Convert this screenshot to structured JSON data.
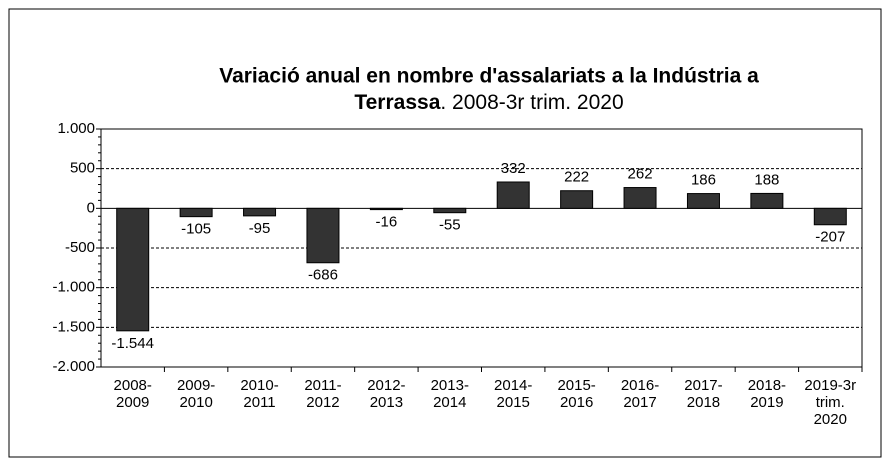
{
  "chart_data": {
    "type": "bar",
    "title": [
      "Variació anual en nombre d'assalariats a la Indústria a",
      "Terrassa"
    ],
    "subtitle": ". 2008-3r trim. 2020",
    "categories": [
      "2008-2009",
      "2009-2010",
      "2010-2011",
      "2011-2012",
      "2012-2013",
      "2013-2014",
      "2014-2015",
      "2015-2016",
      "2016-2017",
      "2017-2018",
      "2018-2019",
      "2019-3r trim. 2020"
    ],
    "values": [
      -1544,
      -105,
      -95,
      -686,
      -16,
      -55,
      332,
      222,
      262,
      186,
      188,
      -207
    ],
    "value_labels": [
      "-1.544",
      "-105",
      "-95",
      "-686",
      "-16",
      "-55",
      "332",
      "222",
      "262",
      "186",
      "188",
      "-207"
    ],
    "color": "#333333",
    "ylim": [
      -2000,
      1000
    ],
    "yticks": [
      {
        "value": -2000,
        "label": "-2.000"
      },
      {
        "value": -1500,
        "label": "-1.500"
      },
      {
        "value": -1000,
        "label": "-1.000"
      },
      -500,
      0,
      500,
      {
        "value": 1000,
        "label": "1.000"
      }
    ],
    "grid": true
  }
}
